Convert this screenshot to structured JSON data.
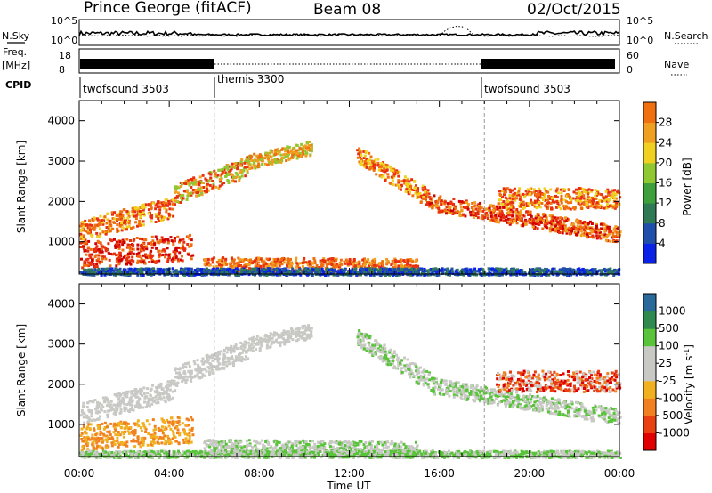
{
  "header": {
    "station": "Prince George (fitACF)",
    "beam": "Beam 08",
    "date": "02/Oct/2015"
  },
  "strip_labels": {
    "nsky": "N.Sky",
    "nsearch": "N.Search",
    "freq": "Freq.",
    "freq_unit": "[MHz]",
    "nave": "Nave",
    "cpid": "CPID",
    "nsky_hi": "10^5",
    "nsky_lo": "10^0",
    "nsearch_hi": "10^5",
    "nsearch_lo": "10^0",
    "freq_hi": "18",
    "freq_lo": "8",
    "nave_hi": "60",
    "nave_lo": "0"
  },
  "cpid_segments": [
    {
      "label": "twofsound 3503",
      "start": "00:00",
      "end": "06:00"
    },
    {
      "label": "themis 3300",
      "start": "06:00",
      "end": "18:00"
    },
    {
      "label": "twofsound 3503",
      "start": "18:00",
      "end": "00:00"
    }
  ],
  "chart_data": [
    {
      "type": "heatmap",
      "title": "",
      "xlabel": "Time UT",
      "ylabel": "Slant Range [km]",
      "x_ticks": [
        "00:00",
        "04:00",
        "08:00",
        "12:00",
        "16:00",
        "20:00",
        "00:00"
      ],
      "y_ticks": [
        "1000",
        "2000",
        "3000",
        "4000"
      ],
      "ylim": [
        200,
        4500
      ],
      "colorbar": {
        "label": "Power [dB]",
        "ticks": [
          "4",
          "8",
          "12",
          "16",
          "20",
          "24",
          "28"
        ]
      }
    },
    {
      "type": "heatmap",
      "title": "",
      "xlabel": "Time UT",
      "ylabel": "Slant Range [km]",
      "x_ticks": [
        "00:00",
        "04:00",
        "08:00",
        "12:00",
        "16:00",
        "20:00",
        "00:00"
      ],
      "y_ticks": [
        "1000",
        "2000",
        "3000",
        "4000"
      ],
      "ylim": [
        200,
        4500
      ],
      "colorbar": {
        "label": "Velocity [m s",
        "label_sup": "-1",
        "label_end": "]",
        "ticks": [
          "1000",
          "500",
          "100",
          "25",
          "-25",
          "-100",
          "-500",
          "-1000"
        ]
      }
    }
  ],
  "colors": {
    "power_scale": [
      "#0a22e8",
      "#1f4fa8",
      "#2f7a55",
      "#3da03d",
      "#90c832",
      "#f0d020",
      "#f0a020",
      "#f07010",
      "#e83010",
      "#d00000"
    ],
    "velocity_scale": [
      "#1a2fc0",
      "#2a6a9a",
      "#2e8a4e",
      "#59c43a",
      "#c8c8c4",
      "#c8c8c4",
      "#f0b020",
      "#f08020",
      "#e84010",
      "#e00000"
    ]
  }
}
